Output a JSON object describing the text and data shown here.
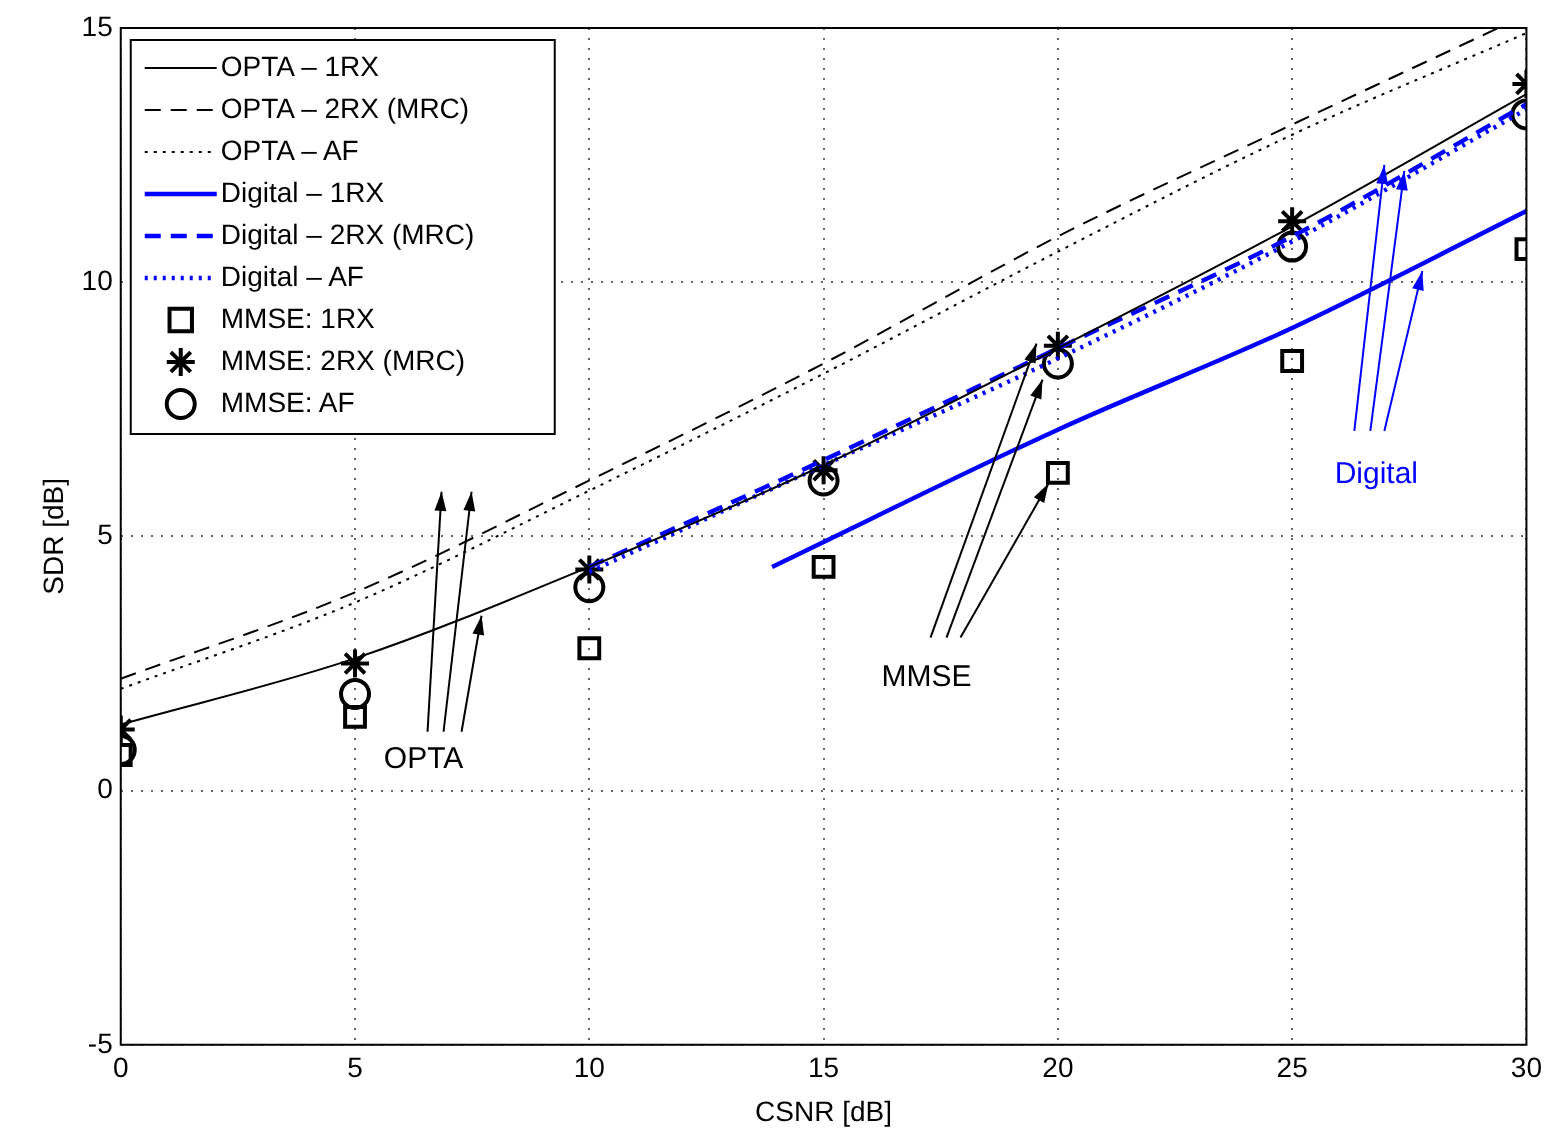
{
  "chart_data": {
    "type": "line",
    "xlabel": "CSNR [dB]",
    "ylabel": "SDR [dB]",
    "x": [
      0,
      5,
      10,
      15,
      20,
      25,
      30
    ],
    "xlim": [
      0,
      30
    ],
    "xticks": [
      0,
      5,
      10,
      15,
      20,
      25,
      30
    ],
    "ylim": [
      -5,
      15
    ],
    "yticks": [
      -5,
      0,
      5,
      10,
      15
    ],
    "grid": true,
    "legend": "top left",
    "series": [
      {
        "name": "OPTA – 1RX",
        "color": "#000000",
        "line_style": "solid",
        "marker": "none",
        "values": [
          1.3,
          2.6,
          4.4,
          6.4,
          8.7,
          11.1,
          13.7
        ]
      },
      {
        "name": "OPTA – 2RX (MRC)",
        "color": "#000000",
        "line_style": "dashed",
        "marker": "none",
        "x": [
          0,
          5,
          10,
          15,
          20,
          25,
          29.4
        ],
        "values": [
          2.2,
          3.9,
          6.1,
          8.4,
          10.9,
          13.1,
          15
        ]
      },
      {
        "name": "OPTA – AF",
        "color": "#000000",
        "line_style": "dotted",
        "marker": "none",
        "values": [
          2.0,
          3.7,
          5.9,
          8.2,
          10.6,
          12.9,
          14.9
        ]
      },
      {
        "name": "Digital – 1RX",
        "color": "#0000ff",
        "line_style": "solid",
        "marker": "none",
        "x": [
          13.9,
          20,
          25,
          30
        ],
        "values": [
          4.4,
          7.1,
          9.1,
          11.4
        ]
      },
      {
        "name": "Digital – 2RX (MRC)",
        "color": "#0000ff",
        "line_style": "dashed",
        "marker": "none",
        "x": [
          10,
          15,
          20,
          25,
          30
        ],
        "values": [
          4.4,
          6.5,
          8.7,
          10.9,
          13.5
        ]
      },
      {
        "name": "Digital – AF",
        "color": "#0000ff",
        "line_style": "dotted",
        "marker": "none",
        "x": [
          10,
          15,
          20,
          25,
          30
        ],
        "values": [
          4.3,
          6.4,
          8.5,
          10.8,
          13.4
        ]
      },
      {
        "name": "MMSE: 1RX",
        "type": "scatter",
        "color": "#000000",
        "marker": "square",
        "values": [
          0.7,
          1.45,
          2.8,
          4.4,
          6.25,
          8.45,
          10.65
        ]
      },
      {
        "name": "MMSE: 2RX (MRC)",
        "type": "scatter",
        "color": "#000000",
        "marker": "cross",
        "values": [
          1.2,
          2.5,
          4.35,
          6.3,
          8.75,
          11.2,
          13.9
        ]
      },
      {
        "name": "MMSE: AF",
        "type": "scatter",
        "color": "#000000",
        "marker": "circle",
        "values": [
          0.8,
          1.9,
          4.0,
          6.1,
          8.4,
          10.7,
          13.3
        ]
      }
    ],
    "annotations": [
      {
        "text": "OPTA",
        "x": 7.7,
        "y": 3.4
      },
      {
        "text": "MMSE",
        "x": 19.8,
        "y": 6.0
      },
      {
        "text": "Digital",
        "x": 27.8,
        "y": 10.3
      }
    ]
  }
}
